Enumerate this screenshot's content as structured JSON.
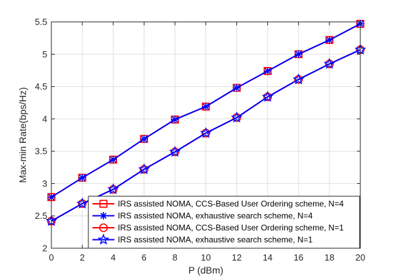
{
  "chart_data": {
    "type": "line",
    "xlabel": "P (dBm)",
    "ylabel": "Max-min Rate(bps/Hz)",
    "xlim": [
      0,
      20
    ],
    "ylim": [
      2,
      5.5
    ],
    "xticks": [
      0,
      2,
      4,
      6,
      8,
      10,
      12,
      14,
      16,
      18,
      20
    ],
    "yticks": [
      2,
      2.5,
      3,
      3.5,
      4,
      4.5,
      5,
      5.5
    ],
    "x_tick_labels": [
      "0",
      "2",
      "4",
      "6",
      "8",
      "10",
      "12",
      "14",
      "16",
      "18",
      "20"
    ],
    "y_tick_labels": [
      "2",
      "2.5",
      "3",
      "3.5",
      "4",
      "4.5",
      "5",
      "5.5"
    ],
    "grid": true,
    "legend_position": "bottom-right",
    "x": [
      0,
      2,
      4,
      6,
      8,
      10,
      12,
      14,
      16,
      18,
      20
    ],
    "series": [
      {
        "name": "IRS assisted NOMA, CCS-Based User Ordering scheme, N=4",
        "color": "#ff0000",
        "marker": "square",
        "values": [
          2.79,
          3.09,
          3.37,
          3.69,
          3.99,
          4.19,
          4.48,
          4.74,
          5.0,
          5.22,
          5.47
        ]
      },
      {
        "name": "IRS assisted NOMA, exhaustive search scheme, N=4",
        "color": "#0000ff",
        "marker": "asterisk",
        "values": [
          2.79,
          3.09,
          3.37,
          3.69,
          3.99,
          4.19,
          4.48,
          4.74,
          5.0,
          5.22,
          5.47
        ]
      },
      {
        "name": "IRS assisted NOMA, CCS-Based User Ordering scheme, N=1",
        "color": "#ff0000",
        "marker": "circle",
        "values": [
          2.42,
          2.69,
          2.91,
          3.22,
          3.49,
          3.78,
          4.02,
          4.34,
          4.61,
          4.85,
          5.07
        ]
      },
      {
        "name": "IRS assisted NOMA, exhaustive search scheme, N=1",
        "color": "#0000ff",
        "marker": "star",
        "values": [
          2.42,
          2.69,
          2.91,
          3.22,
          3.49,
          3.78,
          4.02,
          4.34,
          4.61,
          4.85,
          5.07
        ]
      }
    ]
  }
}
